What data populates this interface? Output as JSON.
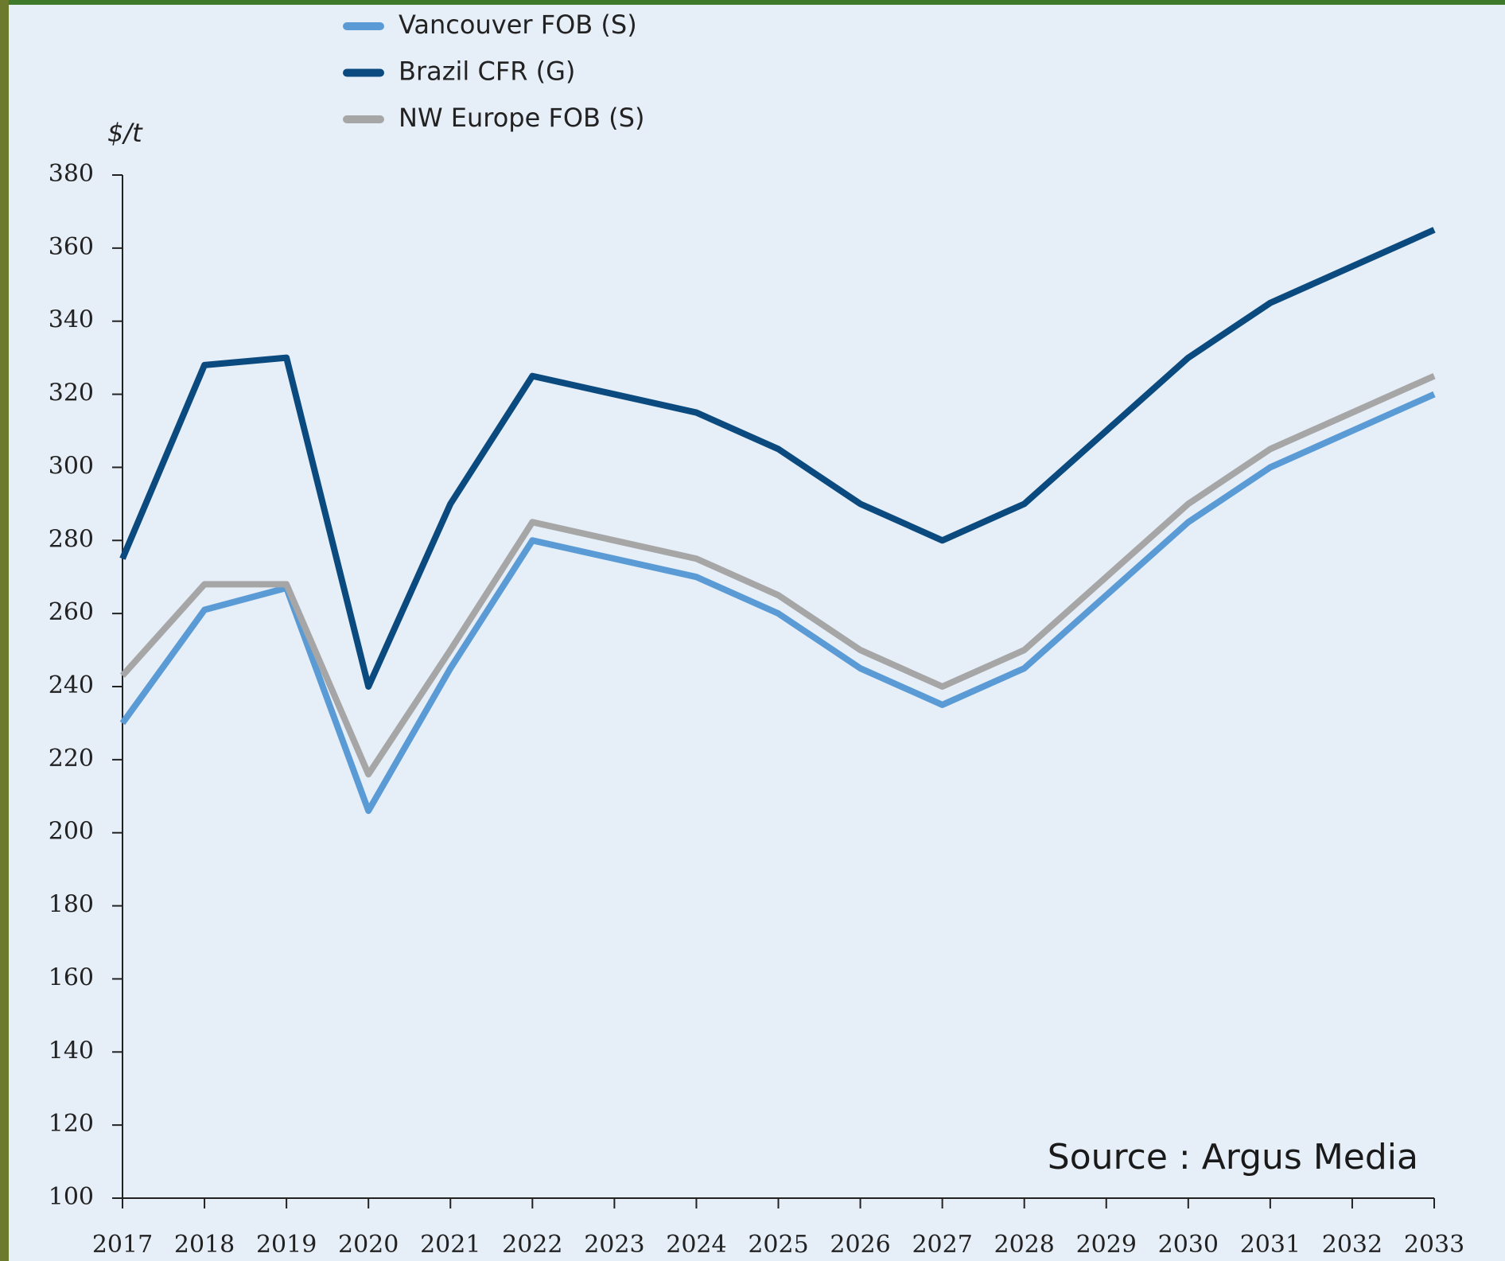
{
  "chart_data": {
    "type": "line",
    "y_label": "$/t",
    "annotation": "Source : Argus Media",
    "x": [
      2017,
      2018,
      2019,
      2020,
      2021,
      2022,
      2023,
      2024,
      2025,
      2026,
      2027,
      2028,
      2029,
      2030,
      2031,
      2032,
      2033
    ],
    "xlim": [
      2017,
      2033
    ],
    "xticks": [
      2017,
      2018,
      2019,
      2020,
      2021,
      2022,
      2023,
      2024,
      2025,
      2026,
      2027,
      2028,
      2029,
      2030,
      2031,
      2032,
      2033
    ],
    "ylim": [
      100,
      380
    ],
    "yticks": [
      100,
      120,
      140,
      160,
      180,
      200,
      220,
      240,
      260,
      280,
      300,
      320,
      340,
      360,
      380
    ],
    "grid": false,
    "series": [
      {
        "name": "Vancouver FOB (S)",
        "color": "#5b9bd5",
        "values": [
          230,
          261,
          267,
          206,
          245,
          280,
          275,
          270,
          260,
          245,
          235,
          245,
          265,
          285,
          300,
          310,
          320
        ]
      },
      {
        "name": "Brazil CFR (G)",
        "color": "#0b4a7e",
        "values": [
          275,
          328,
          330,
          240,
          290,
          325,
          320,
          315,
          305,
          290,
          280,
          290,
          310,
          330,
          345,
          355,
          365
        ]
      },
      {
        "name": "NW Europe FOB (S)",
        "color": "#a6a6a6",
        "values": [
          243,
          268,
          268,
          216,
          250,
          285,
          280,
          275,
          265,
          250,
          240,
          250,
          270,
          290,
          305,
          315,
          325
        ]
      }
    ]
  }
}
